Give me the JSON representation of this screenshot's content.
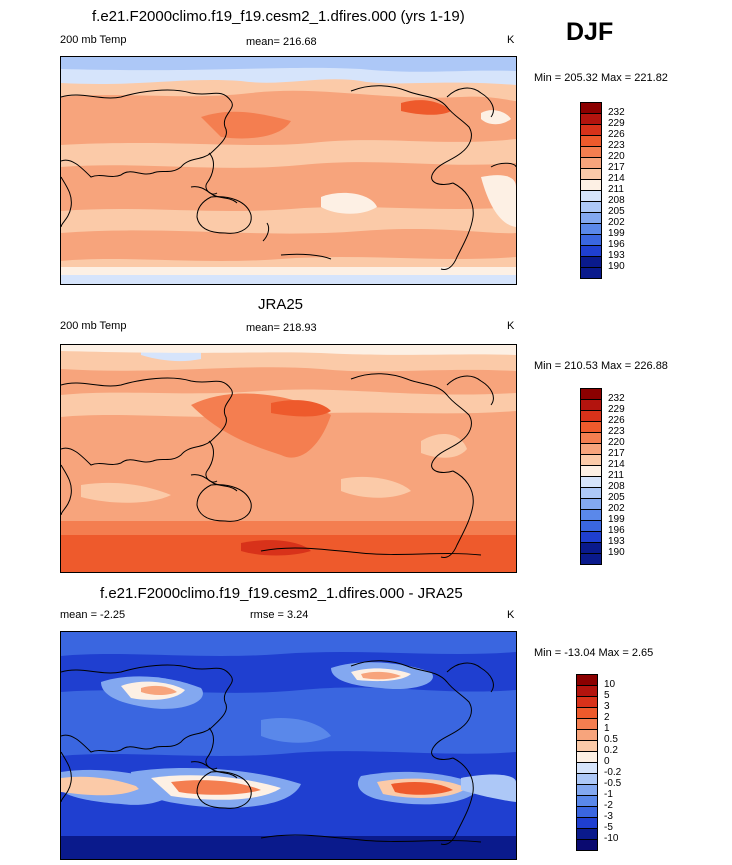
{
  "season": "DJF",
  "panels": [
    {
      "title": "f.e21.F2000climo.f19_f19.cesm2_1.dfires.000 (yrs 1-19)",
      "left_label": "200 mb Temp",
      "center_label": "mean= 216.68",
      "right_label": "K",
      "minmax": "Min = 205.32 Max = 221.82",
      "kind": "model"
    },
    {
      "title": "JRA25",
      "left_label": "200 mb Temp",
      "center_label": "mean= 218.93",
      "right_label": "K",
      "minmax": "Min = 210.53 Max = 226.88",
      "kind": "obs"
    },
    {
      "title": "f.e21.F2000climo.f19_f19.cesm2_1.dfires.000 - JRA25",
      "left_label": "mean =  -2.25",
      "center_label": "rmse =   3.24",
      "right_label": "K",
      "minmax": "Min = -13.04 Max =   2.65",
      "kind": "diff"
    }
  ],
  "colorbars": {
    "abs": {
      "labels": [
        "232",
        "229",
        "226",
        "223",
        "220",
        "217",
        "214",
        "211",
        "208",
        "205",
        "202",
        "199",
        "196",
        "193",
        "190"
      ],
      "colors": [
        "#8b0000",
        "#b3140e",
        "#d8321a",
        "#ee5a2c",
        "#f47e50",
        "#f7a47c",
        "#fbcaa8",
        "#fdf0e4",
        "#d6e4fb",
        "#adc8f7",
        "#83a8f0",
        "#5a88ea",
        "#3a66e0",
        "#1f3fd0",
        "#0a1a8c"
      ]
    },
    "diff": {
      "labels": [
        "10",
        "5",
        "3",
        "2",
        "1",
        "0.5",
        "0.2",
        "0",
        "-0.2",
        "-0.5",
        "-1",
        "-2",
        "-3",
        "-5",
        "-10"
      ],
      "colors": [
        "#8b0000",
        "#b3140e",
        "#d8321a",
        "#ee5a2c",
        "#f47e50",
        "#f7a47c",
        "#fbcaa8",
        "#fdf0e4",
        "#d6e4fb",
        "#adc8f7",
        "#83a8f0",
        "#5a88ea",
        "#3a66e0",
        "#1f3fd0",
        "#0a1a8c",
        "#0a0a70"
      ]
    }
  }
}
